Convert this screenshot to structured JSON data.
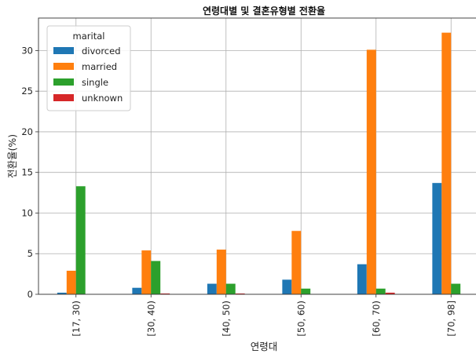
{
  "chart_data": {
    "type": "bar",
    "title": "연령대별 및 결혼유형별 전환율",
    "xlabel": "연령대",
    "ylabel": "전환율(%)",
    "categories": [
      "[17, 30)",
      "[30, 40)",
      "[40, 50)",
      "[50, 60)",
      "[60, 70)",
      "[70, 98]"
    ],
    "ylim": [
      0,
      34
    ],
    "yticks": [
      0,
      5,
      10,
      15,
      20,
      25,
      30
    ],
    "grid": true,
    "legend": {
      "title": "marital",
      "placement": "top-left"
    },
    "series": [
      {
        "name": "divorced",
        "color": "#1f77b4",
        "values": [
          0.2,
          0.8,
          1.3,
          1.8,
          3.7,
          13.7
        ]
      },
      {
        "name": "married",
        "color": "#ff7f0e",
        "values": [
          2.9,
          5.4,
          5.5,
          7.8,
          30.1,
          32.2
        ]
      },
      {
        "name": "single",
        "color": "#2ca02c",
        "values": [
          13.3,
          4.1,
          1.3,
          0.7,
          0.7,
          1.3
        ]
      },
      {
        "name": "unknown",
        "color": "#d62728",
        "values": [
          0.0,
          0.1,
          0.1,
          0.0,
          0.2,
          0.0
        ]
      }
    ]
  }
}
